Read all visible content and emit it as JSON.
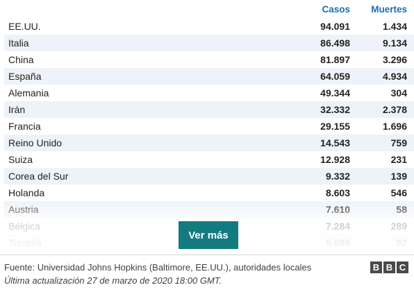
{
  "table": {
    "header": {
      "cases": "Casos",
      "deaths": "Muertes"
    },
    "rows": [
      {
        "country": "EE.UU.",
        "cases": "94.091",
        "deaths": "1.434"
      },
      {
        "country": "Italia",
        "cases": "86.498",
        "deaths": "9.134"
      },
      {
        "country": "China",
        "cases": "81.897",
        "deaths": "3.296"
      },
      {
        "country": "España",
        "cases": "64.059",
        "deaths": "4.934"
      },
      {
        "country": "Alemania",
        "cases": "49.344",
        "deaths": "304"
      },
      {
        "country": "Irán",
        "cases": "32.332",
        "deaths": "2.378"
      },
      {
        "country": "Francia",
        "cases": "29.155",
        "deaths": "1.696"
      },
      {
        "country": "Reino Unido",
        "cases": "14.543",
        "deaths": "759"
      },
      {
        "country": "Suiza",
        "cases": "12.928",
        "deaths": "231"
      },
      {
        "country": "Corea del Sur",
        "cases": "9.332",
        "deaths": "139"
      },
      {
        "country": "Holanda",
        "cases": "8.603",
        "deaths": "546"
      },
      {
        "country": "Austria",
        "cases": "7.610",
        "deaths": "58"
      },
      {
        "country": "Bélgica",
        "cases": "7.284",
        "deaths": "289"
      },
      {
        "country": "Turquía",
        "cases": "5.698",
        "deaths": "92"
      }
    ]
  },
  "button": {
    "label": "Ver más"
  },
  "footer": {
    "source": "Fuente: Universidad Johns Hopkins (Baltimore, EE.UU.), autoridades locales",
    "updated": "Última actualización 27 de marzo de 2020 18:00 GMT."
  },
  "logo": {
    "letters": [
      "B",
      "B",
      "C"
    ]
  },
  "colors": {
    "header_text": "#1b6fb3",
    "row_shade": "#edf3f8",
    "button_bg": "#137b7f",
    "logo_bg": "#4a4a4a"
  }
}
